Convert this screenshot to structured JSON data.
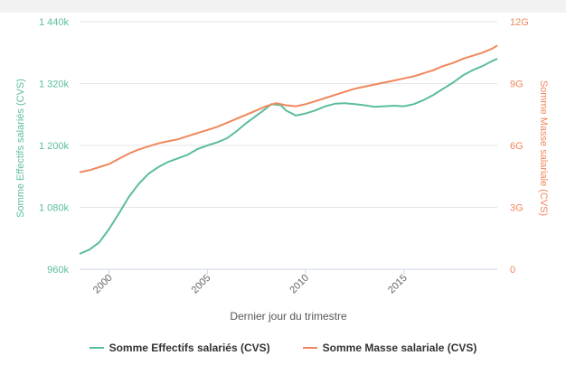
{
  "chart_data": {
    "type": "line",
    "xlabel": "Dernier jour du trimestre",
    "x_ticks": [
      "2000",
      "2005",
      "2010",
      "2015"
    ],
    "legend_position": "bottom-center",
    "grid": true,
    "axes": {
      "left": {
        "label": "Somme Effectifs salariés (CVS)",
        "ticks": [
          "960k",
          "1 080k",
          "1 200k",
          "1 320k",
          "1 440k"
        ],
        "tick_values": [
          960,
          1080,
          1200,
          1320,
          1440
        ],
        "range": [
          960,
          1440
        ],
        "unit": "k"
      },
      "right": {
        "label": "Somme Masse salariale (CVS)",
        "ticks": [
          "0",
          "3G",
          "6G",
          "9G",
          "12G"
        ],
        "tick_values": [
          0,
          3,
          6,
          9,
          12
        ],
        "range": [
          0,
          12
        ],
        "unit": "G"
      }
    },
    "x_range": [
      1998.5,
      2019.75
    ],
    "series": [
      {
        "name": "Somme Effectifs salariés (CVS)",
        "axis": "left",
        "color": "#5cbd9c",
        "points": [
          [
            1998.5,
            990
          ],
          [
            1999.0,
            998
          ],
          [
            1999.5,
            1012
          ],
          [
            2000.0,
            1038
          ],
          [
            2000.5,
            1068
          ],
          [
            2001.0,
            1100
          ],
          [
            2001.5,
            1125
          ],
          [
            2002.0,
            1145
          ],
          [
            2002.5,
            1158
          ],
          [
            2003.0,
            1168
          ],
          [
            2003.5,
            1175
          ],
          [
            2004.0,
            1182
          ],
          [
            2004.5,
            1193
          ],
          [
            2005.0,
            1200
          ],
          [
            2005.5,
            1206
          ],
          [
            2006.0,
            1214
          ],
          [
            2006.5,
            1228
          ],
          [
            2007.0,
            1244
          ],
          [
            2007.5,
            1258
          ],
          [
            2008.0,
            1272
          ],
          [
            2008.25,
            1280
          ],
          [
            2008.75,
            1278
          ],
          [
            2009.0,
            1268
          ],
          [
            2009.5,
            1258
          ],
          [
            2010.0,
            1262
          ],
          [
            2010.5,
            1268
          ],
          [
            2011.0,
            1276
          ],
          [
            2011.5,
            1281
          ],
          [
            2012.0,
            1282
          ],
          [
            2012.5,
            1280
          ],
          [
            2013.0,
            1278
          ],
          [
            2013.5,
            1275
          ],
          [
            2014.0,
            1276
          ],
          [
            2014.5,
            1277
          ],
          [
            2015.0,
            1276
          ],
          [
            2015.5,
            1280
          ],
          [
            2016.0,
            1288
          ],
          [
            2016.5,
            1298
          ],
          [
            2017.0,
            1310
          ],
          [
            2017.5,
            1322
          ],
          [
            2018.0,
            1336
          ],
          [
            2018.5,
            1346
          ],
          [
            2019.0,
            1354
          ],
          [
            2019.5,
            1364
          ],
          [
            2019.75,
            1368
          ]
        ]
      },
      {
        "name": "Somme Masse salariale (CVS)",
        "axis": "right",
        "color": "#f0875b",
        "points": [
          [
            1998.5,
            4.7
          ],
          [
            1999.0,
            4.8
          ],
          [
            1999.5,
            4.95
          ],
          [
            2000.0,
            5.1
          ],
          [
            2000.5,
            5.35
          ],
          [
            2001.0,
            5.6
          ],
          [
            2001.5,
            5.8
          ],
          [
            2002.0,
            5.95
          ],
          [
            2002.5,
            6.1
          ],
          [
            2003.0,
            6.2
          ],
          [
            2003.5,
            6.3
          ],
          [
            2004.0,
            6.45
          ],
          [
            2004.5,
            6.6
          ],
          [
            2005.0,
            6.75
          ],
          [
            2005.5,
            6.9
          ],
          [
            2006.0,
            7.1
          ],
          [
            2006.5,
            7.3
          ],
          [
            2007.0,
            7.5
          ],
          [
            2007.5,
            7.7
          ],
          [
            2008.0,
            7.9
          ],
          [
            2008.5,
            8.05
          ],
          [
            2009.0,
            7.95
          ],
          [
            2009.5,
            7.9
          ],
          [
            2010.0,
            8.0
          ],
          [
            2010.5,
            8.15
          ],
          [
            2011.0,
            8.3
          ],
          [
            2011.5,
            8.45
          ],
          [
            2012.0,
            8.6
          ],
          [
            2012.5,
            8.75
          ],
          [
            2013.0,
            8.85
          ],
          [
            2013.5,
            8.95
          ],
          [
            2014.0,
            9.05
          ],
          [
            2014.5,
            9.15
          ],
          [
            2015.0,
            9.25
          ],
          [
            2015.5,
            9.35
          ],
          [
            2016.0,
            9.5
          ],
          [
            2016.5,
            9.65
          ],
          [
            2017.0,
            9.85
          ],
          [
            2017.5,
            10.0
          ],
          [
            2018.0,
            10.2
          ],
          [
            2018.5,
            10.35
          ],
          [
            2019.0,
            10.5
          ],
          [
            2019.5,
            10.7
          ],
          [
            2019.75,
            10.85
          ]
        ]
      }
    ]
  }
}
